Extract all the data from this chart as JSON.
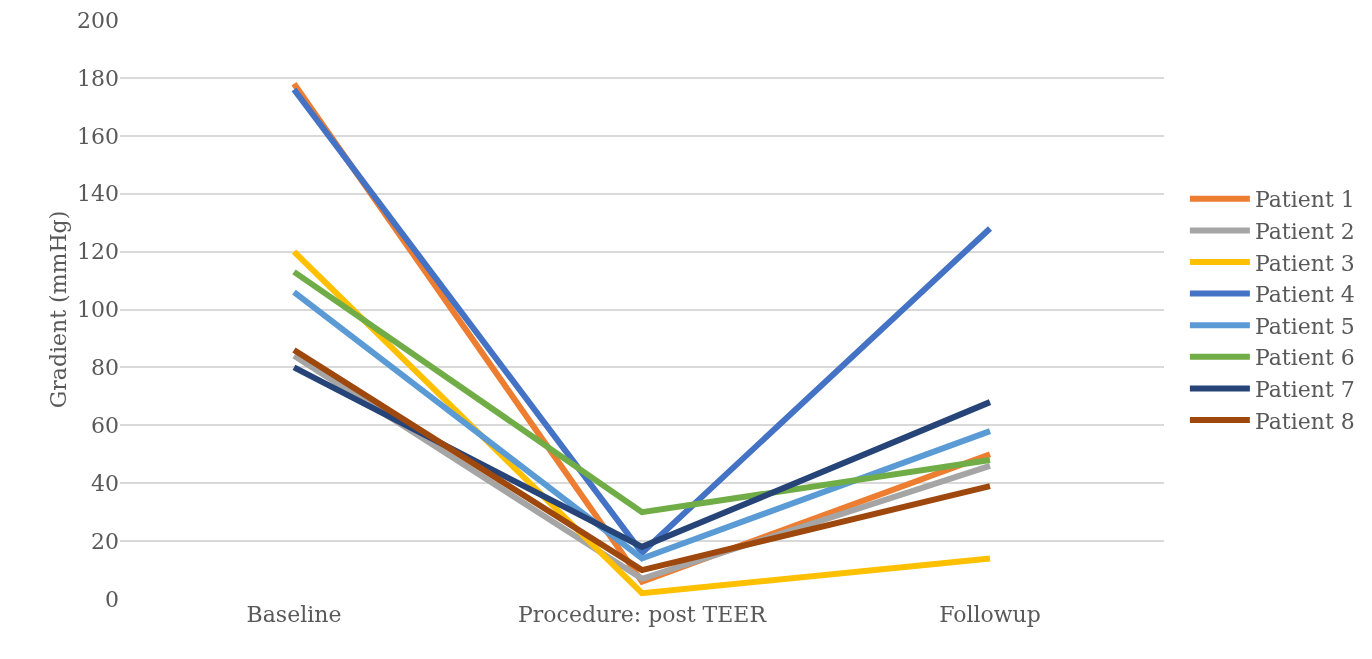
{
  "chart_data": {
    "type": "line",
    "ylabel": "Gradient (mmHg)",
    "categories": [
      "Baseline",
      "Procedure: post TEER",
      "Followup"
    ],
    "ylim": [
      0,
      200
    ],
    "yticks": [
      0,
      20,
      40,
      60,
      80,
      100,
      120,
      140,
      160,
      180,
      200
    ],
    "grid": "y",
    "legend": "right",
    "marker": "none",
    "line_style": "solid",
    "series": [
      {
        "name": "Patient 1",
        "color": "#ed7d31",
        "values": [
          178,
          6,
          50
        ]
      },
      {
        "name": "Patient 2",
        "color": "#a5a5a5",
        "values": [
          84,
          7,
          46
        ]
      },
      {
        "name": "Patient 3",
        "color": "#ffc000",
        "values": [
          120,
          2,
          14
        ]
      },
      {
        "name": "Patient 4",
        "color": "#4472c4",
        "values": [
          176,
          16,
          128
        ]
      },
      {
        "name": "Patient 5",
        "color": "#5b9bd5",
        "values": [
          106,
          14,
          58
        ]
      },
      {
        "name": "Patient 6",
        "color": "#70ad47",
        "values": [
          113,
          30,
          48
        ]
      },
      {
        "name": "Patient 7",
        "color": "#264478",
        "values": [
          80,
          18,
          68
        ]
      },
      {
        "name": "Patient 8",
        "color": "#9e480e",
        "values": [
          86,
          10,
          39
        ]
      }
    ]
  }
}
